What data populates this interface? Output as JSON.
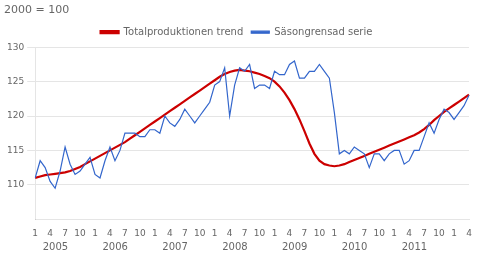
{
  "chart_data": {
    "type": "line",
    "title": "2000 = 100",
    "categories": [
      "1",
      null,
      null,
      "4",
      null,
      null,
      "7",
      null,
      null,
      "10",
      null,
      null,
      "1",
      null,
      null,
      "4",
      null,
      null,
      "7",
      null,
      null,
      "10",
      null,
      null,
      "1",
      null,
      null,
      "4",
      null,
      null,
      "7",
      null,
      null,
      "10",
      null,
      null,
      "1",
      null,
      null,
      "4",
      null,
      null,
      "7",
      null,
      null,
      "10",
      null,
      null,
      "1",
      null,
      null,
      "4",
      null,
      null,
      "7",
      null,
      null,
      "10",
      null,
      null,
      "1",
      null,
      null,
      "4",
      null,
      null,
      "7",
      null,
      null,
      "10",
      null,
      null,
      "1",
      null,
      null,
      "4",
      null,
      null,
      "7",
      null,
      null,
      "10",
      null,
      null,
      "1",
      null,
      null,
      "4"
    ],
    "annotations": [
      {
        "text": "2005",
        "x": 1.5
      },
      {
        "text": "2006",
        "x": 13.5
      },
      {
        "text": "2007",
        "x": 25.5
      },
      {
        "text": "2008",
        "x": 37.5
      },
      {
        "text": "2009",
        "x": 49.5
      },
      {
        "text": "2010",
        "x": 61.5
      },
      {
        "text": "2011",
        "x": 73.5
      }
    ],
    "series": [
      {
        "name": "Säsongrensad serie",
        "color": "#3366cc",
        "values": [
          111.0,
          113.5,
          112.5,
          110.5,
          109.5,
          112.0,
          115.5,
          113.0,
          111.5,
          112.0,
          113.0,
          114.0,
          111.5,
          111.0,
          113.5,
          115.5,
          113.5,
          115.0,
          117.5,
          117.5,
          117.5,
          117.0,
          117.0,
          118.0,
          118.0,
          117.5,
          120.0,
          119.0,
          118.5,
          119.5,
          121.0,
          120.0,
          119.0,
          120.0,
          121.0,
          122.0,
          124.5,
          125.0,
          127.0,
          120.0,
          124.5,
          127.0,
          126.5,
          127.5,
          124.0,
          124.5,
          124.5,
          124.0,
          126.5,
          126.0,
          126.0,
          127.5,
          128.0,
          125.5,
          125.5,
          126.5,
          126.5,
          127.5,
          126.5,
          125.5,
          120.5,
          114.5,
          115.0,
          114.5,
          115.5,
          115.0,
          114.5,
          112.5,
          114.5,
          114.5,
          113.5,
          114.5,
          115.0,
          115.0,
          113.0,
          113.5,
          115.0,
          115.0,
          117.0,
          119.0,
          117.5,
          119.5,
          121.0,
          120.5,
          119.5,
          120.5,
          121.5,
          123.0
        ]
      },
      {
        "name": "Totalproduktionen trend",
        "color": "#cc0000",
        "values": [
          111.0,
          111.2,
          111.4,
          111.5,
          111.6,
          111.7,
          111.8,
          112.0,
          112.3,
          112.6,
          113.0,
          113.4,
          113.8,
          114.2,
          114.6,
          115.0,
          115.4,
          115.8,
          116.2,
          116.7,
          117.2,
          117.7,
          118.2,
          118.7,
          119.2,
          119.7,
          120.2,
          120.7,
          121.2,
          121.7,
          122.2,
          122.7,
          123.2,
          123.7,
          124.2,
          124.7,
          125.2,
          125.7,
          126.1,
          126.4,
          126.6,
          126.7,
          126.6,
          126.5,
          126.3,
          126.1,
          125.8,
          125.5,
          125.0,
          124.3,
          123.4,
          122.3,
          121.0,
          119.5,
          117.8,
          116.0,
          114.5,
          113.5,
          113.0,
          112.8,
          112.7,
          112.8,
          113.0,
          113.3,
          113.6,
          113.9,
          114.2,
          114.5,
          114.8,
          115.1,
          115.4,
          115.7,
          116.0,
          116.3,
          116.6,
          116.9,
          117.2,
          117.6,
          118.1,
          118.7,
          119.4,
          120.0,
          120.6,
          121.1,
          121.6,
          122.1,
          122.6,
          123.1
        ]
      }
    ],
    "ylim": [
      105,
      130
    ],
    "yticks": [
      110,
      115,
      120,
      125,
      130
    ],
    "grid": true
  }
}
